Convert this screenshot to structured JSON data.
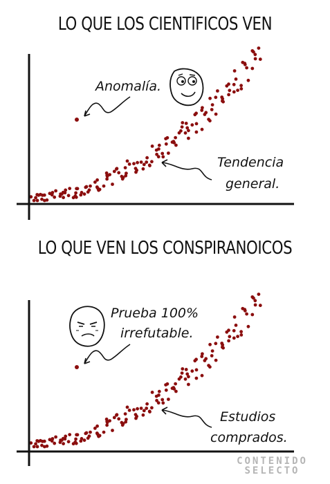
{
  "top_panel": {
    "title": "LO QUE LOS CIENTIFICOS VEN",
    "anomaly_label": "Anomalía.",
    "trend_label_line1": "Tendencia",
    "trend_label_line2": "general."
  },
  "bottom_panel": {
    "title": "LO QUE VEN LOS CONSPIRANOICOS",
    "proof_label_line1": "Prueba 100%",
    "proof_label_line2": "irrefutable.",
    "studies_label_line1": "Estudios",
    "studies_label_line2": "comprados."
  },
  "watermark": {
    "line1": "CONTENIDO",
    "line2": "SELECTO"
  },
  "colors": {
    "dot": "#8b0e0e",
    "ink": "#111111",
    "watermark": "#b5b5b5"
  },
  "icons": {
    "top_face": "rage-comic-face-icon",
    "bottom_face": "suspicious-face-icon"
  }
}
